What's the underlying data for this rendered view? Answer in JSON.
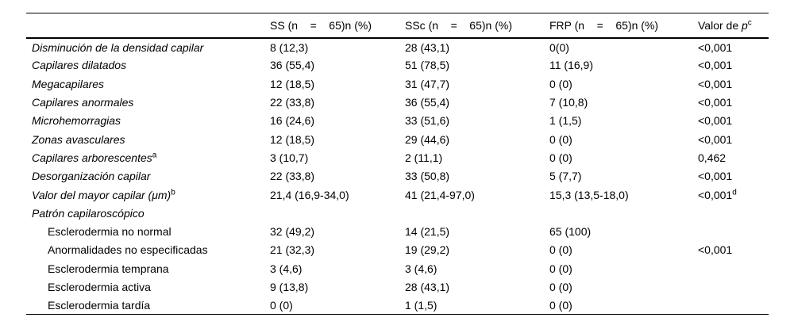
{
  "table": {
    "headers": [
      "",
      "SS (n    =    65)n (%)",
      "SSc (n    =    65)n (%)",
      "FRP (n    =    65)n (%)"
    ],
    "p_header": {
      "prefix": "Valor de ",
      "p": "p",
      "sup": "c"
    },
    "rows": [
      {
        "label": "Disminución de la densidad capilar",
        "label_sup": "",
        "italic": true,
        "indent": false,
        "cells": [
          "8 (12,3)",
          "28 (43,1)",
          "0(0)",
          "<0,001"
        ],
        "p_sup": ""
      },
      {
        "label": "Capilares dilatados",
        "label_sup": "",
        "italic": true,
        "indent": false,
        "cells": [
          "36 (55,4)",
          "51 (78,5)",
          "11 (16,9)",
          "<0,001"
        ],
        "p_sup": ""
      },
      {
        "label": "Megacapilares",
        "label_sup": "",
        "italic": true,
        "indent": false,
        "cells": [
          "12 (18,5)",
          "31 (47,7)",
          "0 (0)",
          "<0,001"
        ],
        "p_sup": ""
      },
      {
        "label": "Capilares anormales",
        "label_sup": "",
        "italic": true,
        "indent": false,
        "cells": [
          "22 (33,8)",
          "36 (55,4)",
          "7 (10,8)",
          "<0,001"
        ],
        "p_sup": ""
      },
      {
        "label": "Microhemorragias",
        "label_sup": "",
        "italic": true,
        "indent": false,
        "cells": [
          "16 (24,6)",
          "33 (51,6)",
          "1 (1,5)",
          "<0,001"
        ],
        "p_sup": ""
      },
      {
        "label": "Zonas avasculares",
        "label_sup": "",
        "italic": true,
        "indent": false,
        "cells": [
          "12 (18,5)",
          "29 (44,6)",
          "0 (0)",
          "<0,001"
        ],
        "p_sup": ""
      },
      {
        "label": "Capilares arborescentes",
        "label_sup": "a",
        "italic": true,
        "indent": false,
        "cells": [
          "3 (10,7)",
          "2 (11,1)",
          "0 (0)",
          "0,462"
        ],
        "p_sup": ""
      },
      {
        "label": "Desorganización capilar",
        "label_sup": "",
        "italic": true,
        "indent": false,
        "cells": [
          "22 (33,8)",
          "33 (50,8)",
          "5 (7,7)",
          "<0,001"
        ],
        "p_sup": ""
      },
      {
        "label": "Valor del mayor capilar (μm)",
        "label_sup": "b",
        "italic": true,
        "indent": false,
        "cells": [
          "21,4 (16,9-34,0)",
          "41 (21,4-97,0)",
          "15,3 (13,5-18,0)",
          "<0,001"
        ],
        "p_sup": "d"
      },
      {
        "label": "Patrón capilaroscópico",
        "label_sup": "",
        "italic": true,
        "indent": false,
        "cells": [
          "",
          "",
          "",
          ""
        ],
        "p_sup": ""
      },
      {
        "label": "Esclerodermia no normal",
        "label_sup": "",
        "italic": false,
        "indent": true,
        "cells": [
          "32 (49,2)",
          "14 (21,5)",
          "65 (100)",
          ""
        ],
        "p_sup": ""
      },
      {
        "label": "Anormalidades no especificadas",
        "label_sup": "",
        "italic": false,
        "indent": true,
        "cells": [
          "21 (32,3)",
          "19 (29,2)",
          "0 (0)",
          "<0,001"
        ],
        "p_sup": ""
      },
      {
        "label": "Esclerodermia temprana",
        "label_sup": "",
        "italic": false,
        "indent": true,
        "cells": [
          "3 (4,6)",
          "3 (4,6)",
          "0 (0)",
          ""
        ],
        "p_sup": ""
      },
      {
        "label": "Esclerodermia activa",
        "label_sup": "",
        "italic": false,
        "indent": true,
        "cells": [
          "9 (13,8)",
          "28 (43,1)",
          "0 (0)",
          ""
        ],
        "p_sup": ""
      },
      {
        "label": "Esclerodermia tardía",
        "label_sup": "",
        "italic": false,
        "indent": true,
        "cells": [
          "0 (0)",
          "1 (1,5)",
          "0 (0)",
          ""
        ],
        "p_sup": ""
      }
    ]
  }
}
